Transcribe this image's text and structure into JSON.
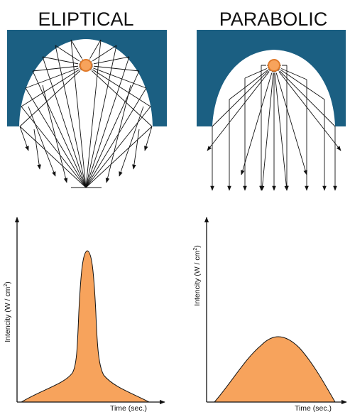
{
  "colors": {
    "reflector": "#1b5f82",
    "lamp_fill": "#f7a35c",
    "lamp_ring": "#e07a2a",
    "curve_fill": "#f7a35c",
    "ray": "#111111",
    "axis": "#111111"
  },
  "panels": [
    {
      "title": "ELIPTICAL",
      "ylabel_main": "Intencity (W / cm",
      "ylabel_sup": "2",
      "ylabel_end": ")",
      "xlabel": "Time (sec.)"
    },
    {
      "title": "PARABOLIC",
      "ylabel_main": "Intencity (W / cm",
      "ylabel_sup": "2",
      "ylabel_end": ")",
      "xlabel": "Time (sec.)"
    }
  ]
}
